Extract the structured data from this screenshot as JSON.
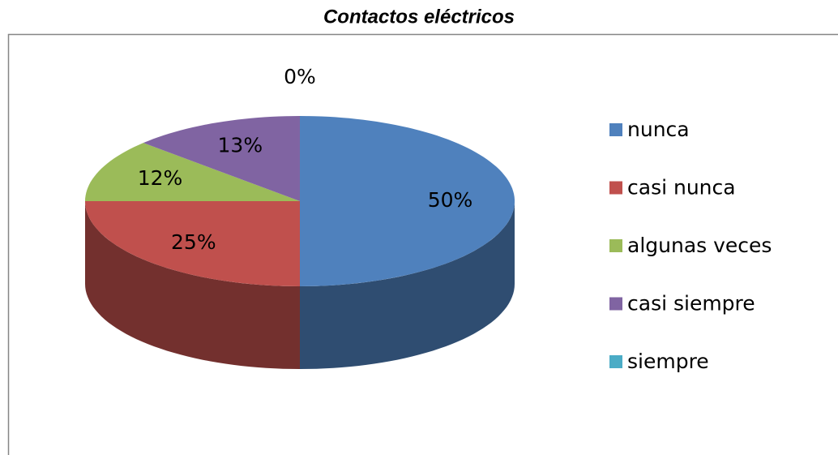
{
  "chart_data": {
    "type": "pie",
    "title": "Contactos eléctricos",
    "categories": [
      "nunca",
      "casi nunca",
      "algunas veces",
      "casi siempre",
      "siempre"
    ],
    "values": [
      50,
      25,
      12,
      13,
      0
    ],
    "value_labels": [
      "50%",
      "25%",
      "12%",
      "13%",
      "0%"
    ],
    "colors": [
      "#4f81bd",
      "#c0504d",
      "#9bbb59",
      "#8064a2",
      "#4bacc6"
    ],
    "legend": "right"
  }
}
